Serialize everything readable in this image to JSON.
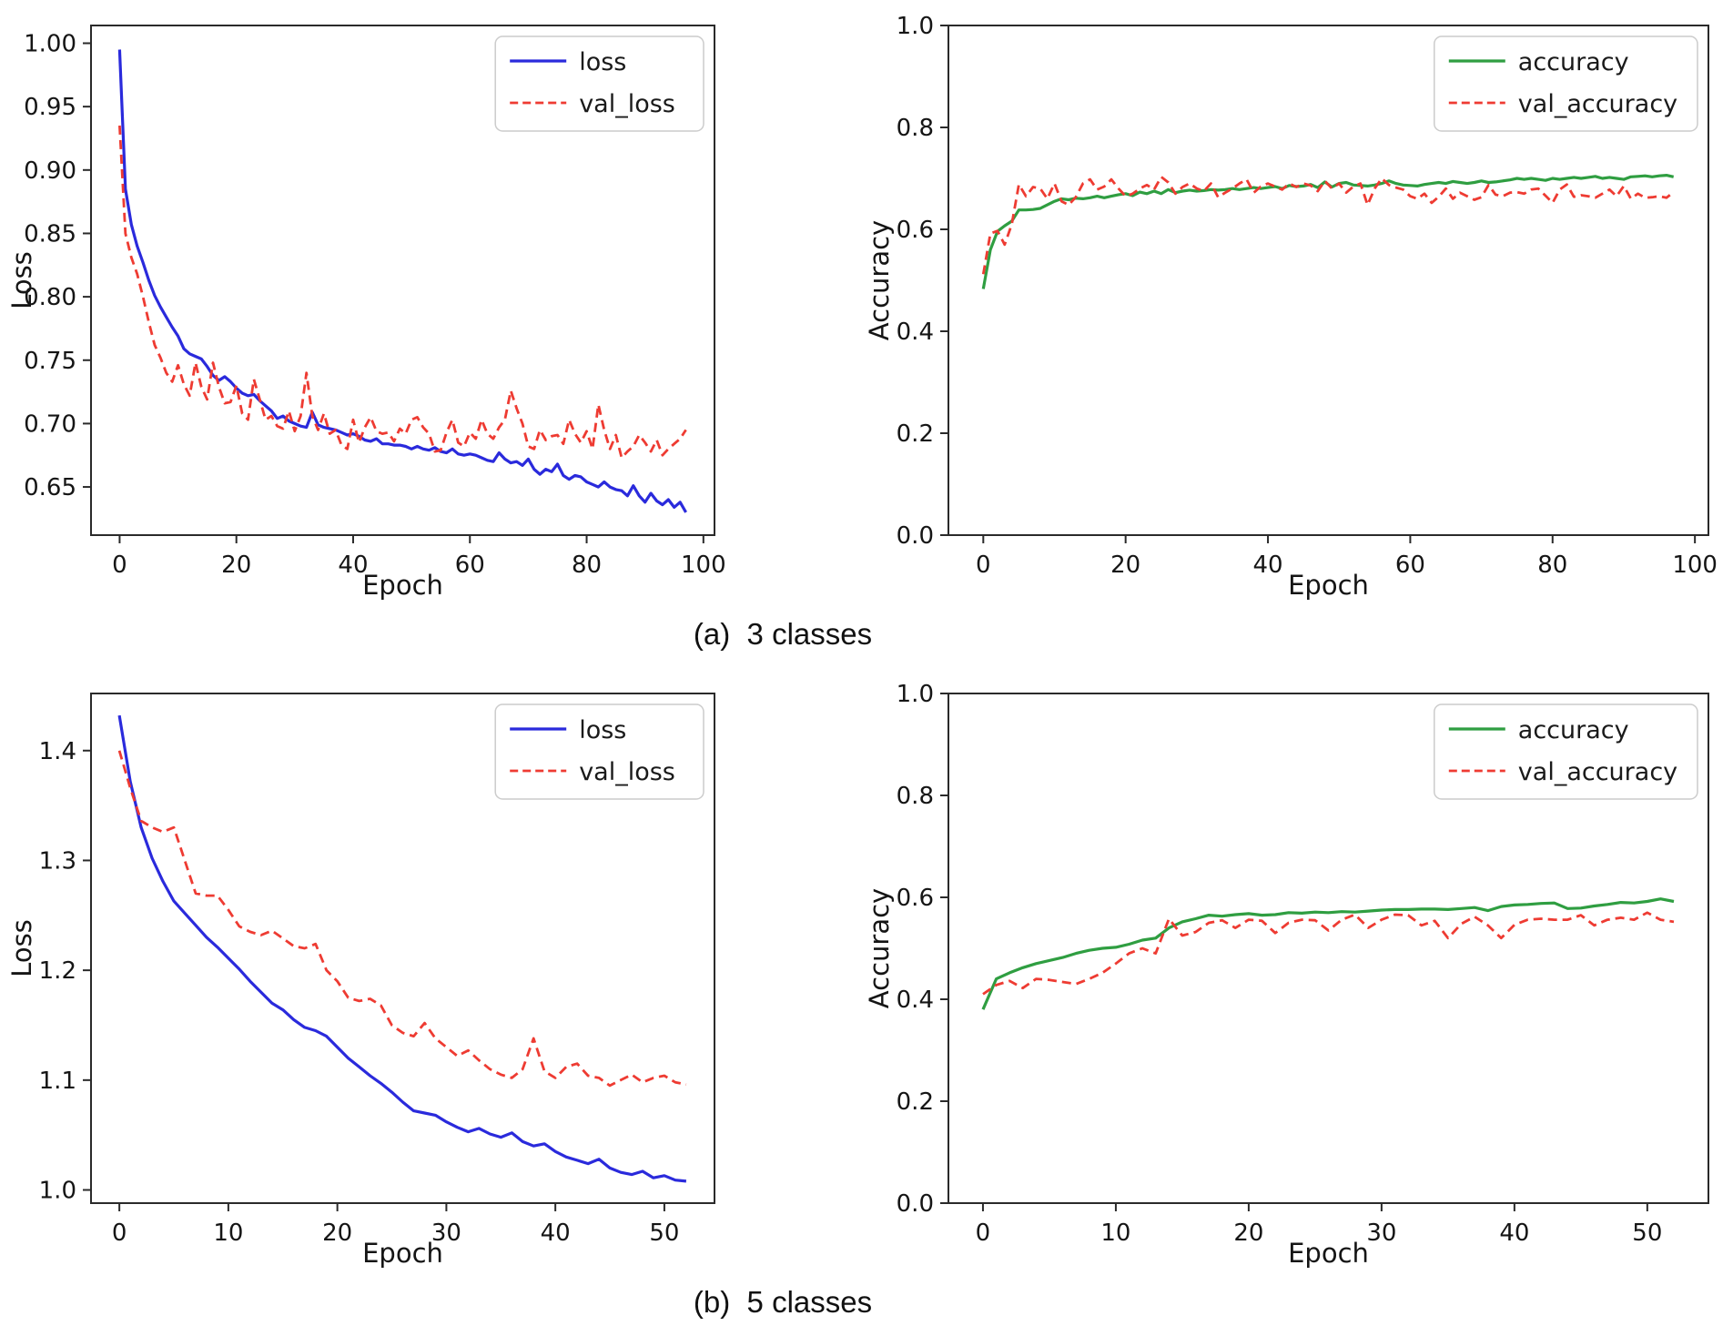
{
  "figure": {
    "captions": {
      "a": "(a)  3 classes",
      "b": "(b)  5 classes"
    }
  },
  "colors": {
    "loss_line": "#2a2adc",
    "val_line": "#ee3b32",
    "accuracy_line": "#2f9e41",
    "axis": "#2a2a2a",
    "text": "#151515",
    "legend_border": "#cccccc",
    "background": "#ffffff"
  },
  "chart_data": [
    {
      "id": "loss-3classes",
      "panel": "a",
      "type": "line",
      "title": "",
      "xlabel": "Epoch",
      "ylabel": "Loss",
      "xlim": [
        -4.9,
        101.9
      ],
      "ylim": [
        0.612,
        1.014
      ],
      "xticks": [
        0,
        20,
        40,
        60,
        80,
        100
      ],
      "yticks": [
        0.65,
        0.7,
        0.75,
        0.8,
        0.85,
        0.9,
        0.95,
        1.0
      ],
      "ytick_decimals": 2,
      "grid": false,
      "legend_position": "upper right",
      "series": [
        {
          "name": "loss",
          "color": "#2a2adc",
          "dash": false,
          "x_start": 0,
          "x_step": 1,
          "y": [
            0.995,
            0.885,
            0.857,
            0.84,
            0.827,
            0.813,
            0.801,
            0.792,
            0.784,
            0.776,
            0.769,
            0.759,
            0.755,
            0.753,
            0.751,
            0.745,
            0.738,
            0.734,
            0.737,
            0.733,
            0.728,
            0.724,
            0.722,
            0.723,
            0.718,
            0.714,
            0.71,
            0.704,
            0.706,
            0.702,
            0.7,
            0.698,
            0.697,
            0.709,
            0.699,
            0.697,
            0.696,
            0.695,
            0.693,
            0.691,
            0.692,
            0.69,
            0.687,
            0.686,
            0.688,
            0.684,
            0.684,
            0.683,
            0.683,
            0.682,
            0.68,
            0.682,
            0.68,
            0.679,
            0.681,
            0.678,
            0.677,
            0.68,
            0.676,
            0.675,
            0.676,
            0.675,
            0.673,
            0.671,
            0.67,
            0.677,
            0.672,
            0.669,
            0.67,
            0.667,
            0.672,
            0.664,
            0.66,
            0.664,
            0.662,
            0.668,
            0.659,
            0.656,
            0.659,
            0.658,
            0.654,
            0.652,
            0.65,
            0.654,
            0.65,
            0.648,
            0.647,
            0.643,
            0.651,
            0.643,
            0.638,
            0.645,
            0.639,
            0.636,
            0.64,
            0.634,
            0.638,
            0.63
          ]
        },
        {
          "name": "val_loss",
          "color": "#ee3b32",
          "dash": true,
          "x_start": 0,
          "x_step": 1,
          "y": [
            0.935,
            0.85,
            0.831,
            0.818,
            0.8,
            0.78,
            0.762,
            0.752,
            0.74,
            0.733,
            0.746,
            0.731,
            0.722,
            0.748,
            0.729,
            0.719,
            0.748,
            0.729,
            0.716,
            0.717,
            0.73,
            0.708,
            0.703,
            0.735,
            0.719,
            0.703,
            0.706,
            0.698,
            0.696,
            0.71,
            0.694,
            0.706,
            0.74,
            0.706,
            0.695,
            0.708,
            0.692,
            0.695,
            0.683,
            0.68,
            0.703,
            0.685,
            0.697,
            0.705,
            0.694,
            0.692,
            0.693,
            0.686,
            0.696,
            0.692,
            0.703,
            0.705,
            0.697,
            0.692,
            0.678,
            0.679,
            0.693,
            0.703,
            0.685,
            0.682,
            0.693,
            0.688,
            0.703,
            0.692,
            0.688,
            0.697,
            0.703,
            0.726,
            0.712,
            0.7,
            0.682,
            0.68,
            0.695,
            0.687,
            0.69,
            0.691,
            0.684,
            0.703,
            0.692,
            0.685,
            0.694,
            0.68,
            0.715,
            0.695,
            0.68,
            0.691,
            0.673,
            0.678,
            0.682,
            0.691,
            0.685,
            0.678,
            0.687,
            0.675,
            0.68,
            0.684,
            0.688,
            0.695
          ]
        }
      ]
    },
    {
      "id": "accuracy-3classes",
      "panel": "a",
      "type": "line",
      "title": "",
      "xlabel": "Epoch",
      "ylabel": "Accuracy",
      "xlim": [
        -4.9,
        101.9
      ],
      "ylim": [
        0.0,
        1.0
      ],
      "xticks": [
        0,
        20,
        40,
        60,
        80,
        100
      ],
      "yticks": [
        0.0,
        0.2,
        0.4,
        0.6,
        0.8,
        1.0
      ],
      "ytick_decimals": 1,
      "grid": false,
      "legend_position": "upper right",
      "series": [
        {
          "name": "accuracy",
          "color": "#2f9e41",
          "dash": false,
          "x_start": 0,
          "x_step": 1,
          "y": [
            0.483,
            0.56,
            0.596,
            0.607,
            0.616,
            0.638,
            0.638,
            0.639,
            0.641,
            0.648,
            0.655,
            0.66,
            0.658,
            0.661,
            0.66,
            0.662,
            0.665,
            0.662,
            0.665,
            0.668,
            0.67,
            0.666,
            0.673,
            0.67,
            0.675,
            0.67,
            0.678,
            0.672,
            0.675,
            0.677,
            0.675,
            0.676,
            0.678,
            0.677,
            0.678,
            0.68,
            0.678,
            0.68,
            0.682,
            0.68,
            0.682,
            0.684,
            0.68,
            0.686,
            0.684,
            0.685,
            0.688,
            0.682,
            0.693,
            0.683,
            0.69,
            0.692,
            0.687,
            0.686,
            0.685,
            0.687,
            0.69,
            0.695,
            0.69,
            0.687,
            0.686,
            0.685,
            0.688,
            0.69,
            0.692,
            0.69,
            0.694,
            0.692,
            0.69,
            0.692,
            0.695,
            0.692,
            0.693,
            0.695,
            0.697,
            0.7,
            0.698,
            0.7,
            0.698,
            0.696,
            0.7,
            0.698,
            0.7,
            0.702,
            0.7,
            0.702,
            0.704,
            0.7,
            0.702,
            0.7,
            0.698,
            0.703,
            0.704,
            0.705,
            0.703,
            0.705,
            0.706,
            0.703
          ]
        },
        {
          "name": "val_accuracy",
          "color": "#ee3b32",
          "dash": true,
          "x_start": 0,
          "x_step": 1,
          "y": [
            0.512,
            0.592,
            0.597,
            0.57,
            0.61,
            0.688,
            0.665,
            0.683,
            0.68,
            0.66,
            0.69,
            0.655,
            0.648,
            0.663,
            0.69,
            0.698,
            0.678,
            0.684,
            0.698,
            0.68,
            0.665,
            0.67,
            0.68,
            0.687,
            0.678,
            0.703,
            0.692,
            0.67,
            0.683,
            0.69,
            0.68,
            0.675,
            0.69,
            0.663,
            0.672,
            0.68,
            0.69,
            0.698,
            0.672,
            0.684,
            0.69,
            0.684,
            0.678,
            0.69,
            0.683,
            0.69,
            0.686,
            0.675,
            0.695,
            0.68,
            0.69,
            0.672,
            0.684,
            0.69,
            0.648,
            0.68,
            0.7,
            0.687,
            0.682,
            0.678,
            0.665,
            0.66,
            0.67,
            0.652,
            0.664,
            0.68,
            0.66,
            0.672,
            0.665,
            0.658,
            0.663,
            0.687,
            0.668,
            0.665,
            0.672,
            0.673,
            0.67,
            0.678,
            0.68,
            0.666,
            0.652,
            0.678,
            0.688,
            0.664,
            0.667,
            0.665,
            0.662,
            0.67,
            0.678,
            0.665,
            0.685,
            0.66,
            0.67,
            0.662,
            0.663,
            0.665,
            0.662,
            0.673
          ]
        }
      ]
    },
    {
      "id": "loss-5classes",
      "panel": "b",
      "type": "line",
      "title": "",
      "xlabel": "Epoch",
      "ylabel": "Loss",
      "xlim": [
        -2.6,
        54.6
      ],
      "ylim": [
        0.988,
        1.452
      ],
      "xticks": [
        0,
        10,
        20,
        30,
        40,
        50
      ],
      "yticks": [
        1.0,
        1.1,
        1.2,
        1.3,
        1.4
      ],
      "ytick_decimals": 1,
      "grid": false,
      "legend_position": "upper right",
      "series": [
        {
          "name": "loss",
          "color": "#2a2adc",
          "dash": false,
          "x_start": 0,
          "x_step": 1,
          "y": [
            1.432,
            1.372,
            1.33,
            1.302,
            1.281,
            1.263,
            1.252,
            1.241,
            1.23,
            1.221,
            1.211,
            1.201,
            1.19,
            1.18,
            1.17,
            1.164,
            1.155,
            1.148,
            1.145,
            1.14,
            1.13,
            1.12,
            1.112,
            1.104,
            1.097,
            1.089,
            1.08,
            1.072,
            1.07,
            1.068,
            1.062,
            1.057,
            1.053,
            1.056,
            1.051,
            1.048,
            1.052,
            1.044,
            1.04,
            1.042,
            1.035,
            1.03,
            1.027,
            1.024,
            1.028,
            1.02,
            1.016,
            1.014,
            1.017,
            1.011,
            1.013,
            1.009,
            1.008
          ]
        },
        {
          "name": "val_loss",
          "color": "#ee3b32",
          "dash": true,
          "x_start": 0,
          "x_step": 1,
          "y": [
            1.4,
            1.366,
            1.336,
            1.33,
            1.326,
            1.33,
            1.3,
            1.27,
            1.268,
            1.268,
            1.255,
            1.24,
            1.235,
            1.232,
            1.236,
            1.229,
            1.222,
            1.22,
            1.224,
            1.2,
            1.19,
            1.175,
            1.172,
            1.174,
            1.168,
            1.15,
            1.143,
            1.14,
            1.152,
            1.138,
            1.13,
            1.122,
            1.127,
            1.118,
            1.11,
            1.105,
            1.102,
            1.11,
            1.138,
            1.108,
            1.102,
            1.112,
            1.115,
            1.104,
            1.102,
            1.095,
            1.1,
            1.105,
            1.098,
            1.102,
            1.104,
            1.098,
            1.096
          ]
        }
      ]
    },
    {
      "id": "accuracy-5classes",
      "panel": "b",
      "type": "line",
      "title": "",
      "xlabel": "Epoch",
      "ylabel": "Accuracy",
      "xlim": [
        -2.6,
        54.6
      ],
      "ylim": [
        0.0,
        1.0
      ],
      "xticks": [
        0,
        10,
        20,
        30,
        40,
        50
      ],
      "yticks": [
        0.0,
        0.2,
        0.4,
        0.6,
        0.8,
        1.0
      ],
      "ytick_decimals": 1,
      "grid": false,
      "legend_position": "upper right",
      "series": [
        {
          "name": "accuracy",
          "color": "#2f9e41",
          "dash": false,
          "x_start": 0,
          "x_step": 1,
          "y": [
            0.38,
            0.44,
            0.452,
            0.462,
            0.47,
            0.476,
            0.482,
            0.49,
            0.496,
            0.5,
            0.502,
            0.508,
            0.516,
            0.52,
            0.54,
            0.552,
            0.558,
            0.565,
            0.563,
            0.566,
            0.568,
            0.565,
            0.566,
            0.57,
            0.569,
            0.571,
            0.57,
            0.572,
            0.571,
            0.573,
            0.575,
            0.576,
            0.576,
            0.577,
            0.577,
            0.576,
            0.578,
            0.58,
            0.574,
            0.582,
            0.585,
            0.586,
            0.588,
            0.589,
            0.578,
            0.579,
            0.583,
            0.586,
            0.59,
            0.589,
            0.592,
            0.597,
            0.592
          ]
        },
        {
          "name": "val_accuracy",
          "color": "#ee3b32",
          "dash": true,
          "x_start": 0,
          "x_step": 1,
          "y": [
            0.41,
            0.428,
            0.436,
            0.422,
            0.44,
            0.438,
            0.434,
            0.43,
            0.44,
            0.452,
            0.47,
            0.49,
            0.5,
            0.49,
            0.558,
            0.525,
            0.532,
            0.55,
            0.555,
            0.54,
            0.556,
            0.554,
            0.53,
            0.55,
            0.556,
            0.555,
            0.535,
            0.556,
            0.566,
            0.54,
            0.556,
            0.566,
            0.565,
            0.545,
            0.554,
            0.52,
            0.548,
            0.562,
            0.545,
            0.52,
            0.546,
            0.556,
            0.558,
            0.556,
            0.556,
            0.565,
            0.545,
            0.556,
            0.56,
            0.556,
            0.57,
            0.556,
            0.552
          ]
        }
      ]
    }
  ]
}
